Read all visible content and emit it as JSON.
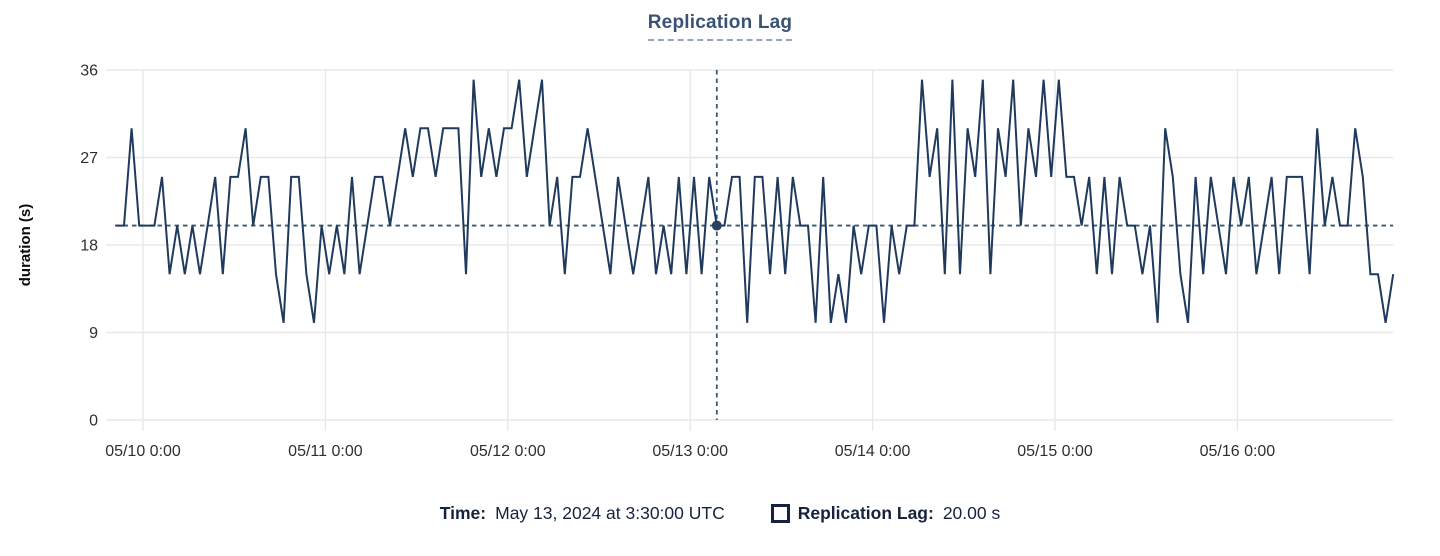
{
  "title": "Replication Lag",
  "colors": {
    "series_line": "#1f3a5c",
    "crosshair_dash": "#3a5a6e",
    "marker_fill": "#27435f",
    "title_text": "#3b5277",
    "title_underline": "#93a2bd",
    "legend_text": "#16233e",
    "gridline": "#e8e8e8",
    "tick_text": "#2f2f2f",
    "axis_label_text": "#0d0d0d"
  },
  "tooltip": {
    "time_label": "Time:",
    "time_value": "May 13, 2024 at 3:30:00 UTC",
    "series_label": "Replication Lag:",
    "series_value": "20.00 s"
  },
  "chart_data": {
    "type": "line",
    "title": "Replication Lag",
    "xlabel": "",
    "ylabel": "duration (s)",
    "ylim": [
      0,
      36
    ],
    "y_ticks": [
      0,
      9,
      18,
      27,
      36
    ],
    "x_tick_labels": [
      "05/10 0:00",
      "05/11 0:00",
      "05/12 0:00",
      "05/13 0:00",
      "05/14 0:00",
      "05/15 0:00",
      "05/16 0:00"
    ],
    "x_tick_indices": [
      3.5,
      27.5,
      51.5,
      75.5,
      99.5,
      123.5,
      147.5
    ],
    "grid": true,
    "legend_position": "bottom",
    "series": [
      {
        "name": "Replication Lag",
        "unit": "s",
        "values": [
          20,
          20,
          30,
          20,
          20,
          20,
          25,
          15,
          20,
          15,
          20,
          15,
          20,
          25,
          15,
          25,
          25,
          30,
          20,
          25,
          25,
          15,
          10,
          25,
          25,
          15,
          10,
          20,
          15,
          20,
          15,
          25,
          15,
          20,
          25,
          25,
          20,
          25,
          30,
          25,
          30,
          30,
          25,
          30,
          30,
          30,
          15,
          35,
          25,
          30,
          25,
          30,
          30,
          35,
          25,
          30,
          35,
          20,
          25,
          15,
          25,
          25,
          30,
          25,
          20,
          15,
          25,
          20,
          15,
          20,
          25,
          15,
          20,
          15,
          25,
          15,
          25,
          15,
          25,
          20,
          20,
          25,
          25,
          10,
          25,
          25,
          15,
          25,
          15,
          25,
          20,
          20,
          10,
          25,
          10,
          15,
          10,
          20,
          15,
          20,
          20,
          10,
          20,
          15,
          20,
          20,
          35,
          25,
          30,
          15,
          35,
          15,
          30,
          25,
          35,
          15,
          30,
          25,
          35,
          20,
          30,
          25,
          35,
          25,
          35,
          25,
          25,
          20,
          25,
          15,
          25,
          15,
          25,
          20,
          20,
          15,
          20,
          10,
          30,
          25,
          15,
          10,
          25,
          15,
          25,
          20,
          15,
          25,
          20,
          25,
          15,
          20,
          25,
          15,
          25,
          25,
          25,
          15,
          30,
          20,
          25,
          20,
          20,
          30,
          25,
          15,
          15,
          10,
          15
        ]
      }
    ],
    "reference_line_y": 20,
    "crosshair": {
      "index": 79,
      "value": 20,
      "value_label": "20.00 s",
      "time": "May 13, 2024 at 3:30:00 UTC"
    }
  }
}
